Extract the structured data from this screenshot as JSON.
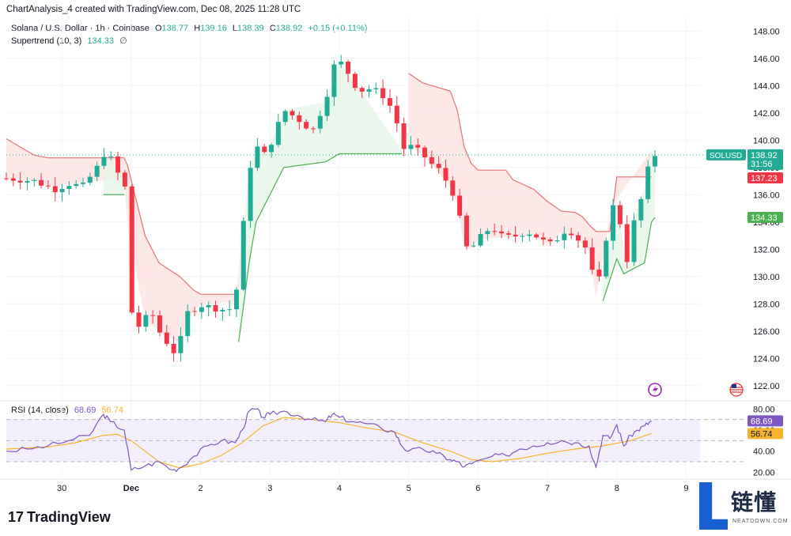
{
  "header": {
    "created": "ChartAnalysis_4 created with TradingView.com, Dec 08, 2025 11:28 UTC"
  },
  "legend": {
    "symbol": "Solana / U.S. Dollar · 1h · Coinbase",
    "o_label": "O",
    "o_value": "138.77",
    "h_label": "H",
    "h_value": "139.16",
    "l_label": "L",
    "l_value": "138.39",
    "c_label": "C",
    "c_value": "138.92",
    "change": "+0.15 (+0.11%)",
    "indicator": "Supertrend (10, 3)",
    "indicator_value": "134.33",
    "indicator_icon": "∅",
    "rsi_label": "RSI (14, close)",
    "rsi_value": "68.69",
    "rsi_ma_value": "56.74"
  },
  "branding": {
    "logo_mark": "17",
    "logo_text": "TradingView"
  },
  "watermark": {
    "cn": "链懂",
    "en": "NEATDOWN.COM"
  },
  "colors": {
    "up": "#22ab94",
    "down": "#f23645",
    "st_up": "#4caf50",
    "st_down": "#e57373",
    "st_up_fill": "#e8f5e9",
    "st_down_fill": "#fde4e4",
    "rsi": "#7e57c2",
    "rsi_ma": "#f7b32b"
  },
  "badges": {
    "price_symbol": "SOLUSD",
    "price": "138.92",
    "countdown": "31:56",
    "st_down": "137.23",
    "st_up": "134.33",
    "rsi": "68.69",
    "rsi_ma": "56.74"
  },
  "chart_data": [
    {
      "type": "candlestick",
      "title": "Solana / U.S. Dollar · 1h · Coinbase",
      "ylim": [
        121,
        149
      ],
      "y_ticks": [
        "148.00",
        "146.00",
        "144.00",
        "142.00",
        "140.00",
        "138.00",
        "136.00",
        "134.00",
        "132.00",
        "130.00",
        "128.00",
        "126.00",
        "124.00",
        "122.00"
      ],
      "x_ticks": [
        "30",
        "Dec",
        "2",
        "3",
        "4",
        "5",
        "6",
        "7",
        "8",
        "9"
      ],
      "close_path": [
        [
          0,
          137.2
        ],
        [
          4,
          137.0
        ],
        [
          7,
          136.4
        ],
        [
          9,
          136.8
        ],
        [
          11,
          136.6
        ],
        [
          13,
          137.9
        ],
        [
          14,
          139.0
        ],
        [
          15,
          138.7
        ],
        [
          16,
          137.6
        ],
        [
          17,
          137.2
        ],
        [
          17.5,
          133.5
        ],
        [
          18,
          127.5
        ],
        [
          19,
          126.3
        ],
        [
          20,
          126.9
        ],
        [
          21,
          127.3
        ],
        [
          22,
          126.0
        ],
        [
          23,
          125.3
        ],
        [
          24,
          124.4
        ],
        [
          25,
          125.1
        ],
        [
          26,
          127.3
        ],
        [
          28,
          127.9
        ],
        [
          31,
          127.6
        ],
        [
          32,
          127.5
        ],
        [
          33,
          128.2
        ],
        [
          34,
          133.0
        ],
        [
          35,
          137.8
        ],
        [
          36,
          139.6
        ],
        [
          37,
          138.8
        ],
        [
          38,
          139.6
        ],
        [
          40,
          142.2
        ],
        [
          41,
          141.9
        ],
        [
          43,
          141.2
        ],
        [
          44,
          140.5
        ],
        [
          45,
          141.7
        ],
        [
          46,
          142.8
        ],
        [
          47,
          145.3
        ],
        [
          48,
          145.8
        ],
        [
          49,
          145.2
        ],
        [
          50,
          144.2
        ],
        [
          51,
          143.6
        ],
        [
          52,
          143.8
        ],
        [
          54,
          143.5
        ],
        [
          55,
          142.7
        ],
        [
          56,
          142.1
        ],
        [
          57,
          139.3
        ],
        [
          58,
          139.6
        ],
        [
          60,
          139.0
        ],
        [
          61,
          138.3
        ],
        [
          62,
          138.1
        ],
        [
          63,
          137.3
        ],
        [
          64,
          136.6
        ],
        [
          65,
          135.3
        ],
        [
          66,
          132.2
        ],
        [
          67,
          132.0
        ],
        [
          68,
          132.7
        ],
        [
          69,
          133.2
        ],
        [
          70,
          133.7
        ],
        [
          71,
          133.0
        ],
        [
          72,
          132.9
        ],
        [
          73,
          132.9
        ],
        [
          75,
          133.3
        ],
        [
          77,
          132.8
        ],
        [
          78,
          132.3
        ],
        [
          79,
          132.5
        ],
        [
          80,
          133.2
        ],
        [
          81,
          133.5
        ],
        [
          83,
          132.4
        ],
        [
          84,
          131.8
        ],
        [
          85,
          128.5
        ],
        [
          86,
          131.3
        ],
        [
          87,
          134.6
        ],
        [
          88,
          135.7
        ],
        [
          89,
          132.0
        ],
        [
          89.5,
          131.2
        ],
        [
          90,
          133.2
        ],
        [
          91,
          134.8
        ],
        [
          92,
          136.5
        ],
        [
          93,
          139.2
        ],
        [
          93.5,
          138.92
        ]
      ],
      "supertrend_down": [
        [
          [
            0,
            140.1
          ],
          [
            2,
            139.5
          ],
          [
            4,
            138.9
          ],
          [
            6,
            138.7
          ],
          [
            17,
            138.7
          ],
          [
            17.5,
            138.1
          ],
          [
            20,
            133.0
          ],
          [
            22,
            131.0
          ],
          [
            25,
            130.0
          ],
          [
            27,
            129.0
          ],
          [
            28,
            128.7
          ],
          [
            33,
            128.7
          ],
          [
            33.5,
            128.7
          ]
        ],
        [
          [
            58,
            144.9
          ],
          [
            60,
            144.2
          ],
          [
            64,
            143.6
          ],
          [
            65,
            142.2
          ],
          [
            66,
            139.5
          ],
          [
            67,
            138.3
          ],
          [
            68,
            137.8
          ],
          [
            72,
            137.8
          ],
          [
            73,
            137.1
          ],
          [
            76,
            136.4
          ],
          [
            78,
            135.5
          ],
          [
            80,
            134.8
          ],
          [
            82,
            134.7
          ],
          [
            83,
            134.4
          ],
          [
            84,
            133.8
          ],
          [
            85,
            133.3
          ],
          [
            86,
            133.3
          ],
          [
            87,
            133.3
          ],
          [
            88,
            137.3
          ],
          [
            93,
            137.3
          ]
        ]
      ],
      "supertrend_up": [
        [
          [
            14,
            136.0
          ],
          [
            17,
            136.0
          ]
        ],
        [
          [
            33.5,
            125.2
          ],
          [
            35,
            131.0
          ],
          [
            36,
            134.0
          ],
          [
            38,
            136.0
          ],
          [
            40,
            138.0
          ],
          [
            46,
            138.4
          ],
          [
            48,
            139.0
          ],
          [
            57,
            139.0
          ]
        ],
        [
          [
            86,
            128.2
          ],
          [
            88,
            131.3
          ],
          [
            89,
            130.2
          ],
          [
            92,
            131.0
          ],
          [
            93,
            134.0
          ],
          [
            93.5,
            134.33
          ]
        ]
      ]
    },
    {
      "type": "line",
      "title": "RSI (14, close)",
      "ylim": [
        15,
        87
      ],
      "y_ticks": [
        "80.00",
        "60.00",
        "40.00",
        "20.00"
      ],
      "bands": [
        70,
        50,
        30
      ],
      "series": [
        {
          "name": "RSI",
          "values": [
            [
              0,
              40
            ],
            [
              3,
              42
            ],
            [
              6,
              45
            ],
            [
              9,
              50
            ],
            [
              12,
              55
            ],
            [
              14,
              75
            ],
            [
              15,
              68
            ],
            [
              17,
              60
            ],
            [
              18,
              22
            ],
            [
              20,
              26
            ],
            [
              22,
              30
            ],
            [
              24,
              22
            ],
            [
              25,
              24
            ],
            [
              27,
              35
            ],
            [
              29,
              45
            ],
            [
              31,
              50
            ],
            [
              33,
              48
            ],
            [
              34,
              60
            ],
            [
              35,
              78
            ],
            [
              36,
              80
            ],
            [
              37,
              72
            ],
            [
              38,
              75
            ],
            [
              40,
              78
            ],
            [
              42,
              74
            ],
            [
              44,
              70
            ],
            [
              46,
              68
            ],
            [
              47,
              75
            ],
            [
              48,
              72
            ],
            [
              50,
              68
            ],
            [
              52,
              66
            ],
            [
              54,
              62
            ],
            [
              56,
              58
            ],
            [
              57,
              45
            ],
            [
              58,
              40
            ],
            [
              60,
              42
            ],
            [
              62,
              38
            ],
            [
              64,
              32
            ],
            [
              65,
              30
            ],
            [
              66,
              25
            ],
            [
              67,
              28
            ],
            [
              70,
              35
            ],
            [
              72,
              36
            ],
            [
              74,
              42
            ],
            [
              76,
              45
            ],
            [
              78,
              48
            ],
            [
              80,
              50
            ],
            [
              82,
              48
            ],
            [
              84,
              45
            ],
            [
              85,
              25
            ],
            [
              86,
              55
            ],
            [
              87,
              52
            ],
            [
              88,
              65
            ],
            [
              89,
              45
            ],
            [
              90,
              55
            ],
            [
              91,
              60
            ],
            [
              92,
              64
            ],
            [
              93,
              68.69
            ]
          ]
        },
        {
          "name": "RSI-based MA",
          "values": [
            [
              0,
              42
            ],
            [
              6,
              44
            ],
            [
              10,
              48
            ],
            [
              14,
              55
            ],
            [
              16,
              56
            ],
            [
              18,
              50
            ],
            [
              20,
              40
            ],
            [
              22,
              30
            ],
            [
              25,
              24
            ],
            [
              28,
              28
            ],
            [
              31,
              36
            ],
            [
              34,
              48
            ],
            [
              37,
              64
            ],
            [
              40,
              72
            ],
            [
              44,
              70
            ],
            [
              48,
              67
            ],
            [
              52,
              62
            ],
            [
              56,
              58
            ],
            [
              60,
              48
            ],
            [
              64,
              40
            ],
            [
              67,
              32
            ],
            [
              70,
              30
            ],
            [
              74,
              33
            ],
            [
              78,
              38
            ],
            [
              82,
              42
            ],
            [
              86,
              45
            ],
            [
              90,
              50
            ],
            [
              93,
              56.74
            ]
          ]
        }
      ]
    }
  ]
}
